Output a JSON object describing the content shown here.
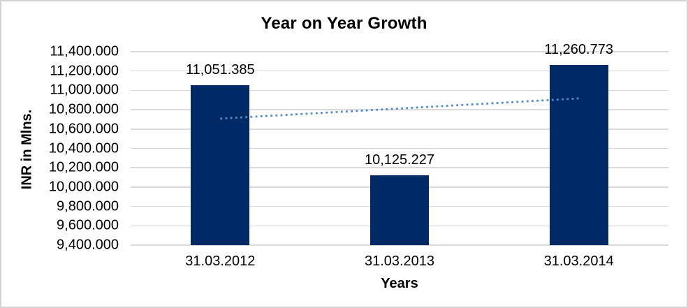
{
  "chart_data": {
    "type": "bar",
    "title": "Year on Year Growth",
    "xlabel": "Years",
    "ylabel": "INR in Mlns.",
    "categories": [
      "31.03.2012",
      "31.03.2013",
      "31.03.2014"
    ],
    "values": [
      11051.385,
      10125.227,
      11260.773
    ],
    "data_labels": [
      "11,051.385",
      "10,125.227",
      "11,260.773"
    ],
    "ylim": [
      9400,
      11400
    ],
    "ytick_step": 200,
    "ytick_labels": [
      "11,400.000",
      "11,200.000",
      "11,000.000",
      "10,800.000",
      "10,600.000",
      "10,400.000",
      "10,200.000",
      "10,000.000",
      "9,800.000",
      "9,600.000",
      "9,400.000"
    ],
    "grid": true,
    "legend": false,
    "trendline": {
      "type": "linear",
      "style": "dotted",
      "start_value": 10708,
      "end_value": 10917
    },
    "colors": {
      "bar": "#002a66",
      "trendline": "#5389cb",
      "gridline": "#d9d9d9",
      "text": "#000000",
      "border": "#d3d3d3",
      "background": "#ffffff"
    }
  }
}
